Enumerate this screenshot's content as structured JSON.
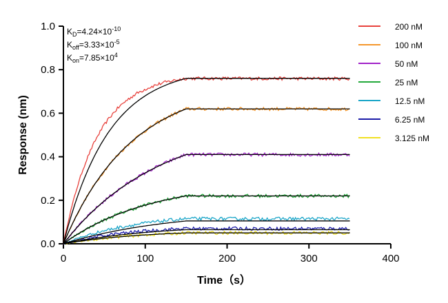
{
  "chart_data": {
    "type": "line",
    "title": "",
    "xlabel": "Time（s）",
    "ylabel": "Response (nm)",
    "xlim": [
      0,
      400
    ],
    "ylim": [
      0,
      1.0
    ],
    "xticks": [
      "0",
      "100",
      "200",
      "300",
      "400"
    ],
    "yticks": [
      "0.0",
      "0.2",
      "0.4",
      "0.6",
      "0.8",
      "1.0"
    ],
    "grid": false,
    "legend_position": "right",
    "association_end_s": 150,
    "dissociation_end_s": 350,
    "annotations": {
      "kd": {
        "symbol": "K",
        "sub": "D",
        "value": "=4.24×10",
        "exp": "-10"
      },
      "koff": {
        "symbol": "K",
        "sub": "off",
        "value": "=3.33×10",
        "exp": "-5"
      },
      "kon": {
        "symbol": "K",
        "sub": "on",
        "value": "=7.85×10",
        "exp": "4"
      }
    },
    "fit_color": "#000000",
    "series": [
      {
        "name": "200 nM",
        "color": "#e8413c",
        "plateau": 0.76,
        "k": 0.024,
        "fit_plateau": 0.76,
        "fit_k": 0.018
      },
      {
        "name": "100 nM",
        "color": "#f4962a",
        "plateau": 0.62,
        "k": 0.012,
        "fit_plateau": 0.62,
        "fit_k": 0.012
      },
      {
        "name": "50 nM",
        "color": "#a020c8",
        "plateau": 0.41,
        "k": 0.0085,
        "fit_plateau": 0.41,
        "fit_k": 0.0085
      },
      {
        "name": "25 nM",
        "color": "#22a83a",
        "plateau": 0.22,
        "k": 0.0095,
        "fit_plateau": 0.22,
        "fit_k": 0.0095
      },
      {
        "name": "12.5 nM",
        "color": "#1aa5c8",
        "plateau": 0.115,
        "k": 0.011,
        "fit_plateau": 0.105,
        "fit_k": 0.0075
      },
      {
        "name": "6.25 nM",
        "color": "#1a1aa8",
        "plateau": 0.07,
        "k": 0.012,
        "fit_plateau": 0.065,
        "fit_k": 0.009
      },
      {
        "name": "3.125 nM",
        "color": "#f0e020",
        "plateau": 0.05,
        "k": 0.01,
        "fit_plateau": 0.05,
        "fit_k": 0.01
      }
    ]
  }
}
